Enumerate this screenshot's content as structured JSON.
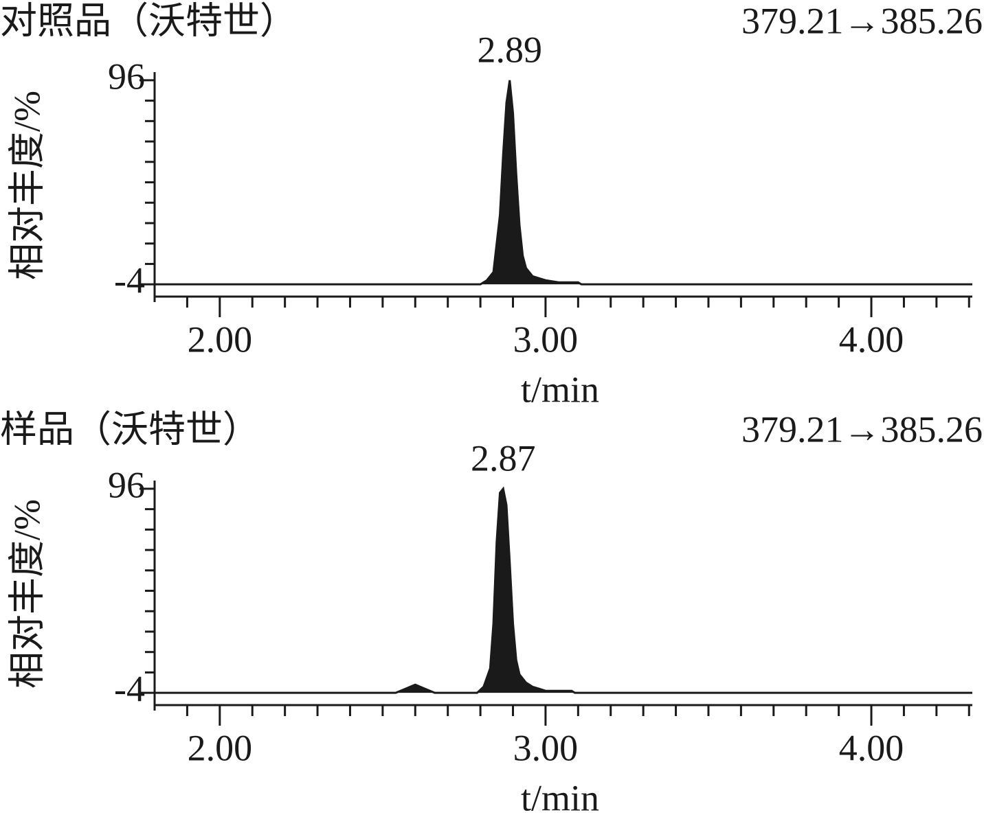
{
  "chart_data": [
    {
      "type": "area",
      "title": "对照品（沃特世）",
      "annotation": "379.21→385.26",
      "peak_label": 2.89,
      "y_label": "相对丰度/%",
      "x_label": "t/min",
      "color": "#1a1a1a",
      "x": [
        1.8,
        2.8,
        2.82,
        2.84,
        2.86,
        2.87,
        2.88,
        2.89,
        2.9,
        2.91,
        2.92,
        2.93,
        2.94,
        2.96,
        2.98,
        3.0,
        3.04,
        3.1,
        3.11,
        4.31
      ],
      "values": [
        -4,
        -4,
        -2,
        2,
        30,
        60,
        85,
        96,
        80,
        50,
        25,
        10,
        4,
        0,
        -1,
        -2,
        -3,
        -3,
        -4,
        -4
      ],
      "xlim": [
        1.8,
        4.31
      ],
      "ylim": [
        -10,
        100
      ],
      "xticks": [
        {
          "value": 2,
          "label": "2.00"
        },
        {
          "value": 3,
          "label": "3.00"
        },
        {
          "value": 4,
          "label": "4.00"
        }
      ],
      "x_minor_ticks": [
        1.9,
        2.1,
        2.2,
        2.3,
        2.4,
        2.5,
        2.6,
        2.7,
        2.8,
        2.9,
        3.1,
        3.2,
        3.3,
        3.4,
        3.5,
        3.6,
        3.7,
        3.8,
        3.9,
        4.1,
        4.2,
        4.3
      ],
      "yticks": [
        -4,
        96
      ],
      "y_minor_ticks": [
        6,
        16,
        26,
        36,
        46,
        56,
        66,
        76,
        86
      ]
    },
    {
      "type": "area",
      "title": "样品（沃特世）",
      "annotation": "379.21→385.26",
      "peak_label": 2.87,
      "y_label": "相对丰度/%",
      "x_label": "t/min",
      "color": "#1a1a1a",
      "x": [
        1.8,
        2.54,
        2.57,
        2.6,
        2.63,
        2.66,
        2.79,
        2.81,
        2.83,
        2.84,
        2.85,
        2.86,
        2.87,
        2.88,
        2.89,
        2.9,
        2.91,
        2.92,
        2.94,
        2.96,
        2.98,
        3.0,
        3.08,
        3.09,
        4.31
      ],
      "values": [
        -4,
        -4,
        -2,
        0,
        -2,
        -4,
        -4,
        -1,
        8,
        30,
        70,
        94,
        96,
        88,
        60,
        30,
        12,
        5,
        1,
        -1,
        -2,
        -3,
        -3,
        -4,
        -4
      ],
      "xlim": [
        1.8,
        4.31
      ],
      "ylim": [
        -10,
        100
      ],
      "xticks": [
        {
          "value": 2,
          "label": "2.00"
        },
        {
          "value": 3,
          "label": "3.00"
        },
        {
          "value": 4,
          "label": "4.00"
        }
      ],
      "x_minor_ticks": [
        1.9,
        2.1,
        2.2,
        2.3,
        2.4,
        2.5,
        2.6,
        2.7,
        2.8,
        2.9,
        3.1,
        3.2,
        3.3,
        3.4,
        3.5,
        3.6,
        3.7,
        3.8,
        3.9,
        4.1,
        4.2,
        4.3
      ],
      "yticks": [
        -4,
        96
      ],
      "y_minor_ticks": [
        6,
        16,
        26,
        36,
        46,
        56,
        66,
        76,
        86
      ]
    }
  ]
}
